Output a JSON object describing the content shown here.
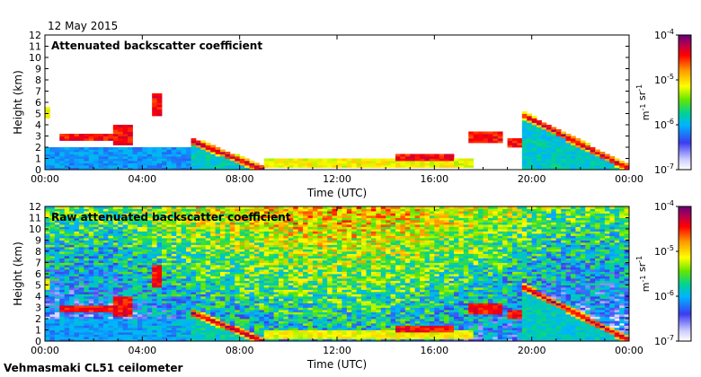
{
  "date": "12 May 2015",
  "footer": "Vehmasmaki CL51 ceilometer",
  "chart_data": [
    {
      "type": "heatmap",
      "title": "Attenuated backscatter coefficient",
      "xlabel": "Time (UTC)",
      "ylabel": "Height (km)",
      "x_ticks": [
        "00:00",
        "04:00",
        "08:00",
        "12:00",
        "16:00",
        "20:00",
        "00:00"
      ],
      "xlim_hours": [
        0,
        24
      ],
      "ylim_km": [
        0,
        12
      ],
      "y_ticks": [
        0,
        1,
        2,
        3,
        4,
        5,
        6,
        7,
        8,
        9,
        10,
        11,
        12
      ],
      "colorbar": {
        "scale": "log",
        "range": [
          1e-07,
          0.0001
        ],
        "tick_labels": [
          "10-7",
          "10-6",
          "10-5",
          "10-4"
        ],
        "label": "m-1 sr-1",
        "colors": [
          "#ffffff",
          "#c8c8ff",
          "#3c3cf0",
          "#00b4ff",
          "#00d296",
          "#64e600",
          "#ffff00",
          "#ff9600",
          "#ff0000",
          "#b40050",
          "#640078"
        ]
      },
      "layers": [
        {
          "name": "surface aerosol layer",
          "t_start": 0,
          "t_end": 6,
          "z_bottom": 0.0,
          "z_top": 1.9,
          "intensity": "low"
        },
        {
          "name": "cloud",
          "t_start": 0.6,
          "t_end": 2.8,
          "z_bottom": 2.7,
          "z_top": 3.2,
          "intensity": "high"
        },
        {
          "name": "cloud",
          "t_start": 2.8,
          "t_end": 3.6,
          "z_bottom": 2.3,
          "z_top": 4.0,
          "intensity": "high"
        },
        {
          "name": "cloud",
          "t_start": 0.1,
          "t_end": 0.3,
          "z_bottom": 4.7,
          "z_top": 5.6,
          "intensity": "medium"
        },
        {
          "name": "cloud fragments",
          "t_start": 4.5,
          "t_end": 4.7,
          "z_bottom": 4.8,
          "z_top": 6.8,
          "intensity": "high"
        },
        {
          "name": "descending boundary layer",
          "t_start": 6.0,
          "t_end": 9.0,
          "z_bottom": 0.0,
          "z_top": 2.6,
          "intensity": "high"
        },
        {
          "name": "nocturnal layer",
          "t_start": 9.0,
          "t_end": 17.5,
          "z_bottom": 0.2,
          "z_top": 0.9,
          "intensity": "medium"
        },
        {
          "name": "cloud",
          "t_start": 14.5,
          "t_end": 16.8,
          "z_bottom": 0.8,
          "z_top": 1.4,
          "intensity": "high"
        },
        {
          "name": "cloud",
          "t_start": 17.5,
          "t_end": 18.8,
          "z_bottom": 2.4,
          "z_top": 3.4,
          "intensity": "high"
        },
        {
          "name": "cloud",
          "t_start": 19.0,
          "t_end": 19.6,
          "z_bottom": 2.0,
          "z_top": 2.8,
          "intensity": "high"
        },
        {
          "name": "descending cloud band",
          "t_start": 19.7,
          "t_end": 24.0,
          "z_bottom": 0.1,
          "z_top": 4.8,
          "intensity": "high"
        }
      ]
    },
    {
      "type": "heatmap",
      "title": "Raw attenuated backscatter coefficient",
      "xlabel": "Time (UTC)",
      "ylabel": "Height (km)",
      "x_ticks": [
        "00:00",
        "04:00",
        "08:00",
        "12:00",
        "16:00",
        "20:00",
        "00:00"
      ],
      "xlim_hours": [
        0,
        24
      ],
      "ylim_km": [
        0,
        12
      ],
      "y_ticks": [
        0,
        1,
        2,
        3,
        4,
        5,
        6,
        7,
        8,
        9,
        10,
        11,
        12
      ],
      "colorbar": {
        "scale": "log",
        "range": [
          1e-07,
          0.0001
        ],
        "tick_labels": [
          "10-7",
          "10-6",
          "10-5",
          "10-4"
        ],
        "label": "m-1 sr-1"
      },
      "background": "noise increasing with height and during daytime"
    }
  ]
}
